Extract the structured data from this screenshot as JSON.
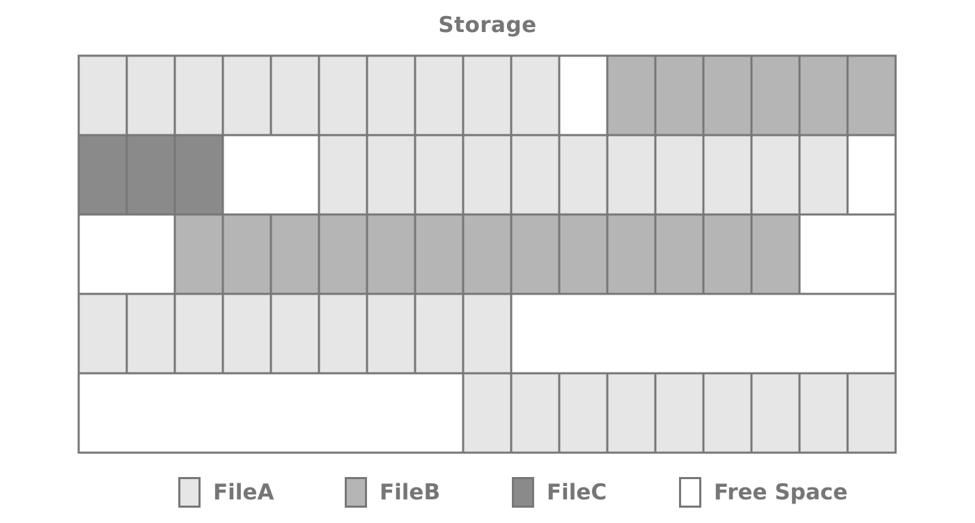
{
  "title": "Storage",
  "colors": {
    "FileA": "#e6e6e6",
    "FileB": "#b5b5b5",
    "FileC": "#8a8a8a",
    "Free": "#ffffff",
    "border": "#777777"
  },
  "legend": [
    {
      "key": "FileA",
      "label": "FileA"
    },
    {
      "key": "FileB",
      "label": "FileB"
    },
    {
      "key": "FileC",
      "label": "FileC"
    },
    {
      "key": "Free",
      "label": "Free Space"
    }
  ],
  "storage": {
    "columns": 17,
    "rows": [
      [
        "A",
        "A",
        "A",
        "A",
        "A",
        "A",
        "A",
        "A",
        "A",
        "A",
        "F",
        "B",
        "B",
        "B",
        "B",
        "B",
        "B"
      ],
      [
        "C",
        "C",
        "C",
        "F",
        "F",
        "A",
        "A",
        "A",
        "A",
        "A",
        "A",
        "A",
        "A",
        "A",
        "A",
        "A",
        "F"
      ],
      [
        "F",
        "F",
        "B",
        "B",
        "B",
        "B",
        "B",
        "B",
        "B",
        "B",
        "B",
        "B",
        "B",
        "B",
        "B",
        "F",
        "F"
      ],
      [
        "A",
        "A",
        "A",
        "A",
        "A",
        "A",
        "A",
        "A",
        "A",
        "F",
        "F",
        "F",
        "F",
        "F",
        "F",
        "F",
        "F"
      ],
      [
        "F",
        "F",
        "F",
        "F",
        "F",
        "F",
        "F",
        "F",
        "A",
        "A",
        "A",
        "A",
        "A",
        "A",
        "A",
        "A",
        "A"
      ]
    ]
  }
}
